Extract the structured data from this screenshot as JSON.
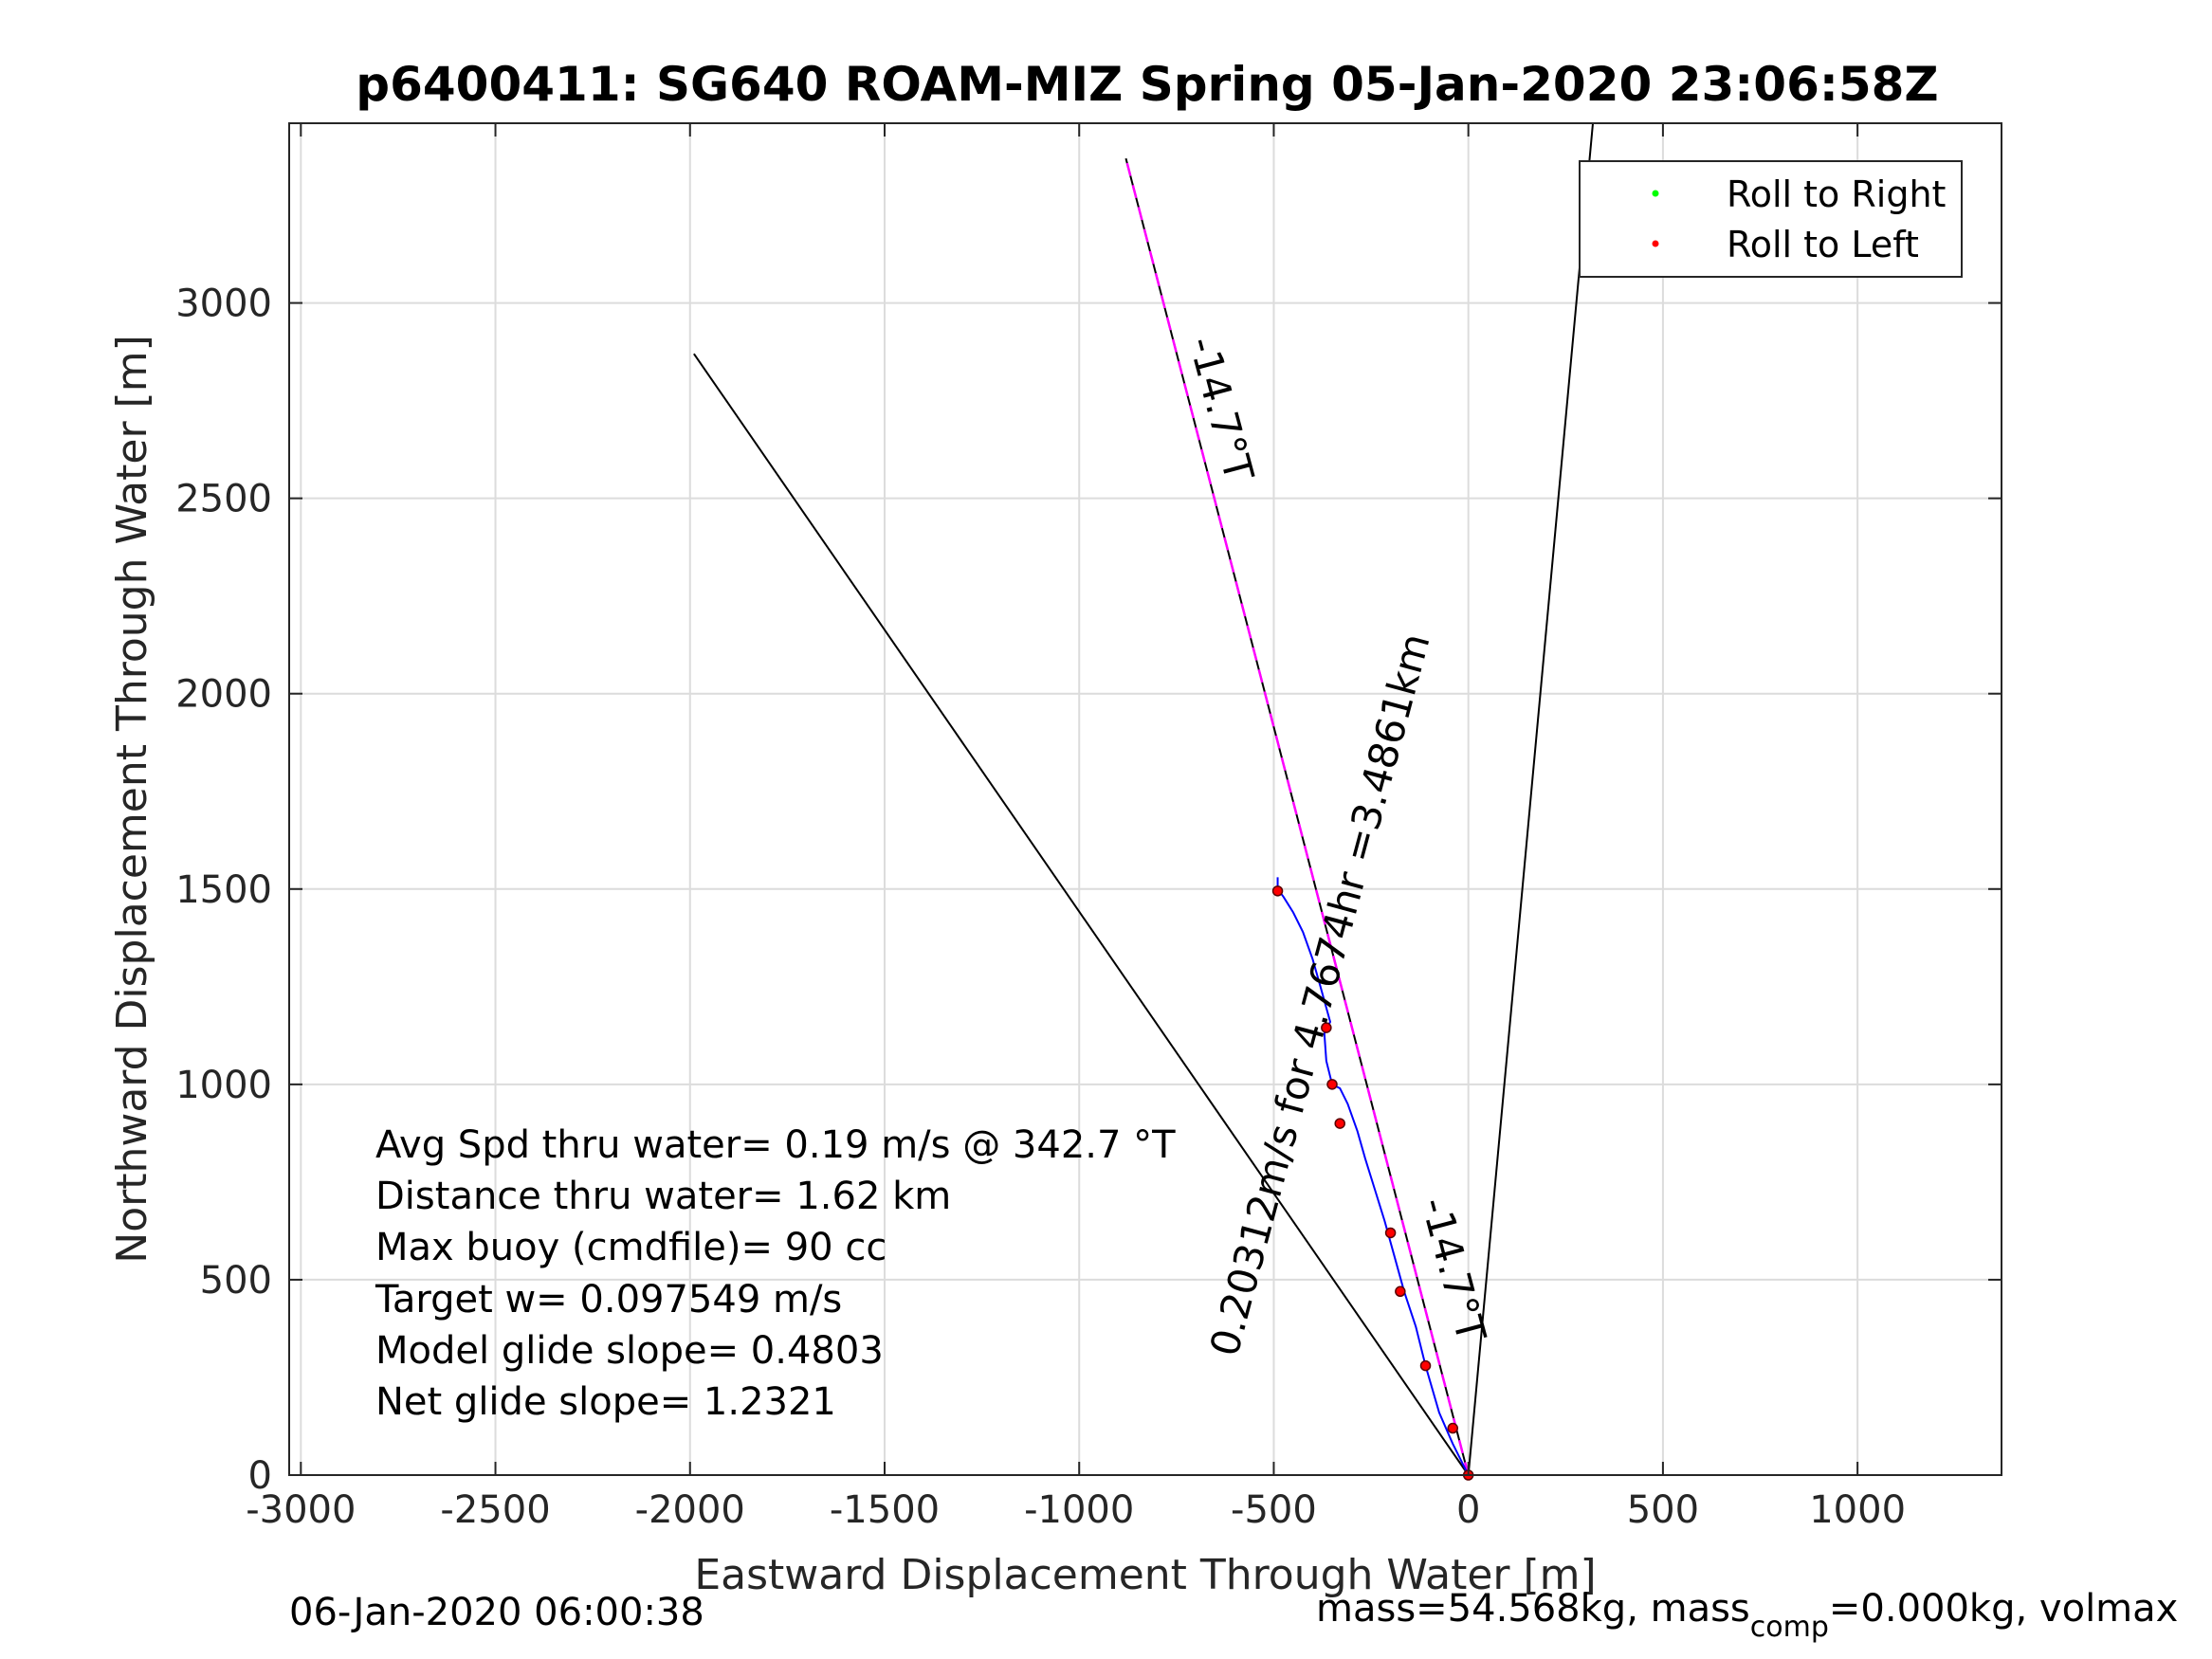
{
  "chart_data": {
    "type": "line",
    "title": "p6400411: SG640 ROAM-MIZ Spring 05-Jan-2020 23:06:58Z",
    "xlabel": "Eastward Displacement Through Water [m]",
    "ylabel": "Northward Displacement Through Water [m]",
    "xlim": [
      -3030,
      1370
    ],
    "ylim": [
      0,
      3460
    ],
    "xticks": [
      -3000,
      -2500,
      -2000,
      -1500,
      -1000,
      -500,
      0,
      500,
      1000
    ],
    "yticks": [
      0,
      500,
      1000,
      1500,
      2000,
      2500,
      3000
    ],
    "grid": true,
    "legend_position": "top-right",
    "legend": [
      {
        "label": "Roll to Right",
        "color": "#00ff00"
      },
      {
        "label": "Roll to Left",
        "color": "#ff0000"
      }
    ],
    "lines": [
      {
        "x": [
          0,
          -1990
        ],
        "y": [
          0,
          2870
        ],
        "color": "#000000"
      },
      {
        "x": [
          0,
          320
        ],
        "y": [
          0,
          3460
        ],
        "color": "#000000"
      },
      {
        "x": [
          0,
          -880
        ],
        "y": [
          0,
          3370
        ],
        "color": "#000000"
      },
      {
        "x": [
          0,
          -880
        ],
        "y": [
          0,
          3370
        ],
        "color": "#ff00ff"
      }
    ],
    "series": [
      {
        "color": "#0000ff",
        "x": [
          0,
          -15,
          -40,
          -75,
          -110,
          -135,
          -165,
          -190,
          -215,
          -240,
          -265,
          -285,
          -310,
          -330,
          -350,
          -365,
          -370,
          -355,
          -380,
          -400,
          -425,
          -450,
          -475,
          -490,
          -490
        ],
        "y": [
          0,
          30,
          80,
          160,
          280,
          380,
          470,
          560,
          650,
          730,
          810,
          880,
          950,
          990,
          1000,
          1060,
          1130,
          1160,
          1250,
          1320,
          1390,
          1440,
          1480,
          1500,
          1530
        ]
      }
    ],
    "markers_roll_left": {
      "color": "#ff0000",
      "x": [
        0,
        -40,
        -110,
        -175,
        -200,
        -330,
        -350,
        -365,
        -490
      ],
      "y": [
        0,
        120,
        280,
        470,
        620,
        900,
        1000,
        1145,
        1495
      ]
    },
    "annotations": [
      {
        "text": "-14.7°T",
        "color": "#000000"
      },
      {
        "text": "0.20312m/s for 4.7674hr =3.4861km",
        "color": "#000000"
      },
      {
        "text": "-14.7°T",
        "color": "#000000"
      }
    ],
    "stats_text": [
      "Avg Spd thru water=  0.19 m/s @ 342.7 °T",
      "Distance thru water=  1.62 km",
      "Max buoy (cmdfile)= 90 cc",
      "Target w= 0.097549 m/s",
      "Model glide slope= 0.4803",
      "Net glide slope= 1.2321"
    ],
    "footer_left": "06-Jan-2020 06:00:38",
    "footer_right": {
      "pre": "mass=54.568kg, mass",
      "sub": "comp",
      "post": "=0.000kg, volmax"
    }
  }
}
